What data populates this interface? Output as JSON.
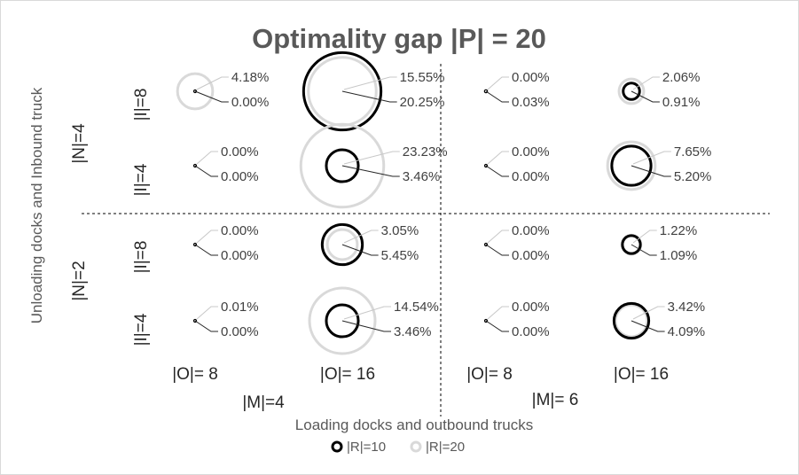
{
  "chart_data": {
    "type": "bubble",
    "title": "Optimality gap |P| = 20",
    "xlabel": "Loading docks and outbound trucks",
    "ylabel": "Unloading docks and Inbound truck",
    "x_groups": [
      {
        "label": "|M|=4",
        "sub": [
          "|O|= 8",
          "|O|= 16"
        ]
      },
      {
        "label": "|M|= 6",
        "sub": [
          "|O|= 8",
          "|O|= 16"
        ]
      }
    ],
    "y_groups": [
      {
        "label": "|N|=4",
        "sub": [
          "|I|=8",
          "|I|=4"
        ]
      },
      {
        "label": "|N|=2",
        "sub": [
          "|I|=8",
          "|I|=4"
        ]
      }
    ],
    "series": [
      {
        "name": "|R|=10",
        "color": "#000000"
      },
      {
        "name": "|R|=20",
        "color": "#d9d9d9"
      }
    ],
    "cells": [
      {
        "row": 0,
        "col": 0,
        "r20": "4.18%",
        "r10": "0.00%",
        "v20": 4.18,
        "v10": 0.0
      },
      {
        "row": 0,
        "col": 1,
        "r20": "15.55%",
        "r10": "20.25%",
        "v20": 15.55,
        "v10": 20.25
      },
      {
        "row": 0,
        "col": 2,
        "r20": "0.00%",
        "r10": "0.03%",
        "v20": 0.0,
        "v10": 0.03
      },
      {
        "row": 0,
        "col": 3,
        "r20": "2.06%",
        "r10": "0.91%",
        "v20": 2.06,
        "v10": 0.91
      },
      {
        "row": 1,
        "col": 0,
        "r20": "0.00%",
        "r10": "0.00%",
        "v20": 0.0,
        "v10": 0.0
      },
      {
        "row": 1,
        "col": 1,
        "r20": "23.23%",
        "r10": "3.46%",
        "v20": 23.23,
        "v10": 3.46
      },
      {
        "row": 1,
        "col": 2,
        "r20": "0.00%",
        "r10": "0.00%",
        "v20": 0.0,
        "v10": 0.0
      },
      {
        "row": 1,
        "col": 3,
        "r20": "7.65%",
        "r10": "5.20%",
        "v20": 7.65,
        "v10": 5.2
      },
      {
        "row": 2,
        "col": 0,
        "r20": "0.00%",
        "r10": "0.00%",
        "v20": 0.0,
        "v10": 0.0
      },
      {
        "row": 2,
        "col": 1,
        "r20": "3.05%",
        "r10": "5.45%",
        "v20": 3.05,
        "v10": 5.45
      },
      {
        "row": 2,
        "col": 2,
        "r20": "0.00%",
        "r10": "0.00%",
        "v20": 0.0,
        "v10": 0.0
      },
      {
        "row": 2,
        "col": 3,
        "r20": "1.22%",
        "r10": "1.09%",
        "v20": 1.22,
        "v10": 1.09
      },
      {
        "row": 3,
        "col": 0,
        "r20": "0.01%",
        "r10": "0.00%",
        "v20": 0.01,
        "v10": 0.0
      },
      {
        "row": 3,
        "col": 1,
        "r20": "14.54%",
        "r10": "3.46%",
        "v20": 14.54,
        "v10": 3.46
      },
      {
        "row": 3,
        "col": 2,
        "r20": "0.00%",
        "r10": "0.00%",
        "v20": 0.0,
        "v10": 0.0
      },
      {
        "row": 3,
        "col": 3,
        "r20": "3.42%",
        "r10": "4.09%",
        "v20": 3.42,
        "v10": 4.09
      }
    ]
  }
}
